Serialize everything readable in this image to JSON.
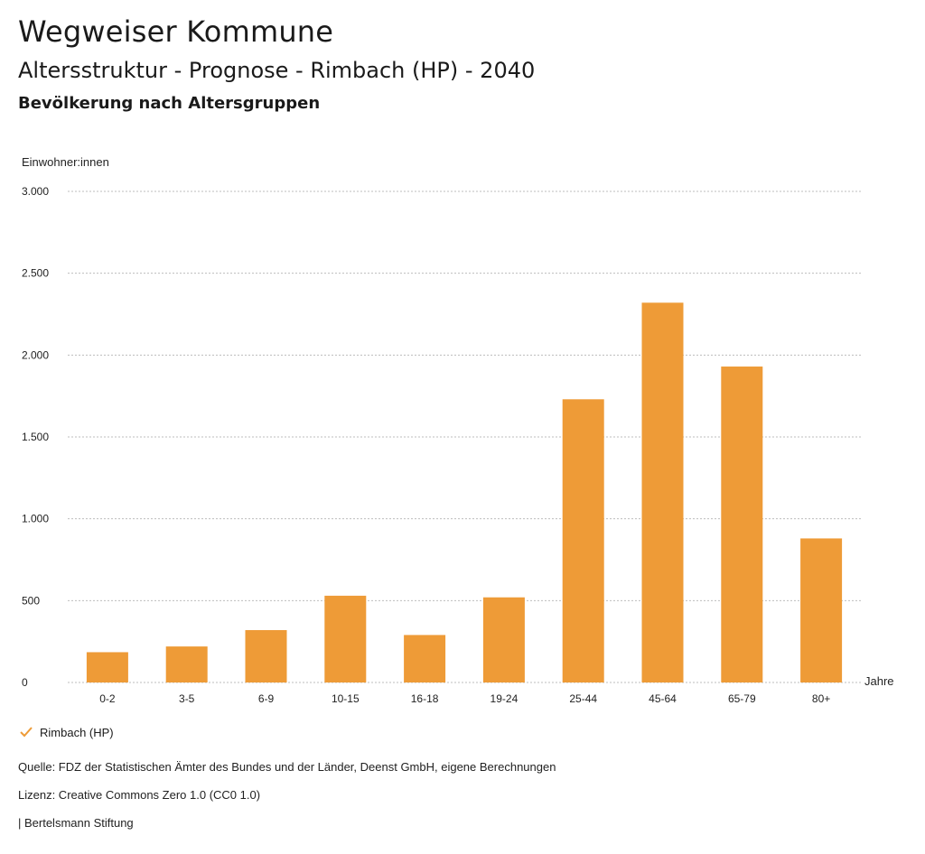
{
  "header": {
    "title": "Wegweiser Kommune",
    "subtitle": "Altersstruktur - Prognose - Rimbach (HP) - 2040",
    "section": "Bevölkerung nach Altersgruppen"
  },
  "chart_data": {
    "type": "bar",
    "ylabel": "Einwohner:innen",
    "xlabel": "Jahre",
    "ylim": [
      0,
      3000
    ],
    "yticks": [
      0,
      500,
      1000,
      1500,
      2000,
      2500,
      3000
    ],
    "ytick_labels": [
      "0",
      "500",
      "1.000",
      "1.500",
      "2.000",
      "2.500",
      "3.000"
    ],
    "grid": true,
    "categories": [
      "0-2",
      "3-5",
      "6-9",
      "10-15",
      "16-18",
      "19-24",
      "25-44",
      "45-64",
      "65-79",
      "80+"
    ],
    "series": [
      {
        "name": "Rimbach (HP)",
        "color": "#ee9b37",
        "values": [
          185,
          220,
          320,
          530,
          290,
          520,
          1730,
          2320,
          1930,
          880
        ]
      }
    ],
    "legend_position": "bottom-left"
  },
  "footer": {
    "source": "Quelle: FDZ der Statistischen Ämter des Bundes und der Länder, Deenst GmbH, eigene Berechnungen",
    "license": "Lizenz: Creative Commons Zero 1.0 (CC0 1.0)",
    "publisher": "| Bertelsmann Stiftung"
  },
  "colors": {
    "bar": "#ee9b37",
    "grid": "#bdbdbd",
    "text": "#1a1a1a"
  }
}
